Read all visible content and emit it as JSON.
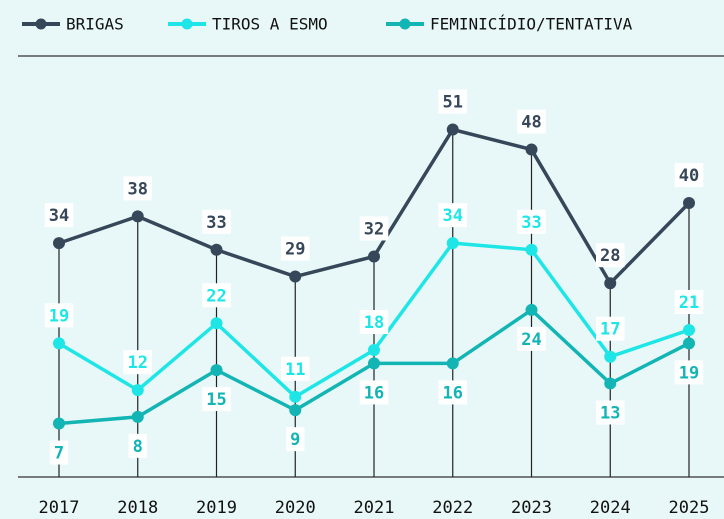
{
  "chart_data": {
    "type": "line",
    "categories": [
      "2017",
      "2018",
      "2019",
      "2020",
      "2021",
      "2022",
      "2023",
      "2024",
      "2025"
    ],
    "series": [
      {
        "name": "BRIGAS",
        "color": "#37475a",
        "values": [
          34,
          38,
          33,
          29,
          32,
          51,
          48,
          28,
          40
        ],
        "label_side": "above"
      },
      {
        "name": "TIROS A ESMO",
        "color": "#1ee6e6",
        "values": [
          19,
          12,
          22,
          11,
          18,
          34,
          33,
          17,
          21
        ],
        "label_side": "above"
      },
      {
        "name": "FEMINICÍDIO/TENTATIVA",
        "color": "#12b4b4",
        "values": [
          7,
          8,
          15,
          9,
          16,
          16,
          24,
          13,
          19
        ],
        "label_side": "below"
      }
    ],
    "ylim": [
      -1,
      62
    ]
  }
}
